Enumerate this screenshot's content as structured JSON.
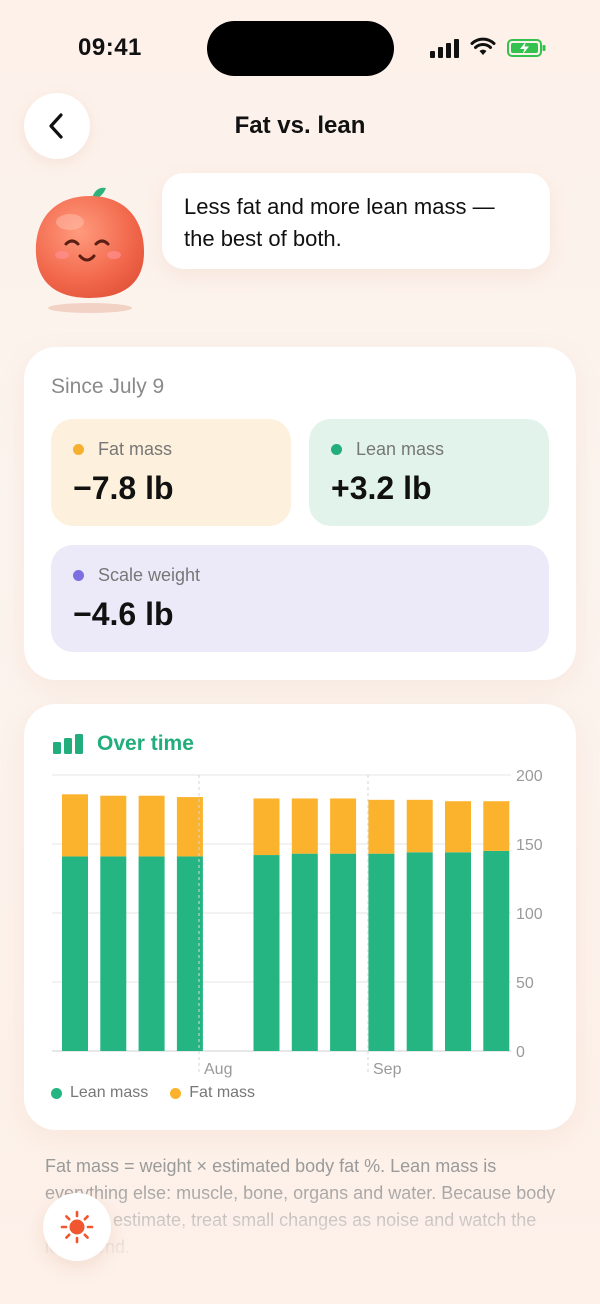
{
  "status_bar": {
    "time": "09:41"
  },
  "header": {
    "title": "Fat vs. lean",
    "back_icon": "chevron-left-icon"
  },
  "coach": {
    "message": "Less fat and more lean mass — the best of both."
  },
  "summary": {
    "since_label": "Since July 9",
    "fat": {
      "label": "Fat mass",
      "value": "−7.8 lb",
      "color": "#f5b02e"
    },
    "lean": {
      "label": "Lean mass",
      "value": "+3.2 lb",
      "color": "#22ad7c"
    },
    "scale": {
      "label": "Scale weight",
      "value": "−4.6 lb",
      "color": "#7c6fe0"
    }
  },
  "chart": {
    "title": "Over time",
    "icon": "bar-chart-icon",
    "legend": [
      {
        "label": "Lean mass",
        "color": "#25b583"
      },
      {
        "label": "Fat mass",
        "color": "#fbb22c"
      }
    ]
  },
  "chart_data": {
    "type": "bar",
    "stacked": true,
    "x_tick_labels": [
      "Aug",
      "Sep"
    ],
    "series": [
      {
        "name": "Lean mass",
        "color": "#25b583",
        "values": [
          141,
          141,
          141,
          141,
          142,
          143,
          143,
          143,
          144,
          144,
          145
        ]
      },
      {
        "name": "Fat mass",
        "color": "#fbb22c",
        "values": [
          45,
          44,
          44,
          43,
          41,
          40,
          40,
          39,
          38,
          37,
          36
        ]
      }
    ],
    "groups": [
      4,
      7
    ],
    "ylim": [
      0,
      200
    ],
    "y_ticks": [
      0,
      50,
      100,
      150,
      200
    ],
    "y_axis_side": "right",
    "grid": true
  },
  "footnote": "Fat mass = weight × estimated body fat %. Lean mass is everything else: muscle, bone, organs and water. Because body fat is an estimate, treat small changes as noise and watch the long trend.",
  "fab": {
    "icon": "sun-icon"
  }
}
